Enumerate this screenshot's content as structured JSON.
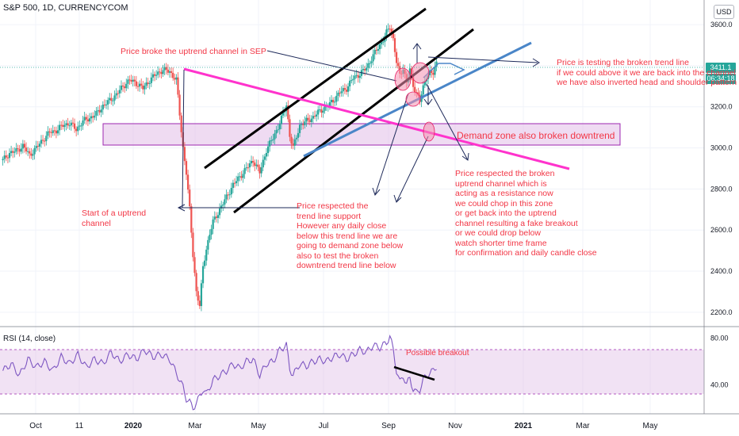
{
  "header": {
    "symbol_title": "S&P 500, 1D, CURRENCYCOM",
    "currency": "USD"
  },
  "price_tags": {
    "last_price": "3411.1",
    "countdown": "06:34:18"
  },
  "annotations": {
    "sep_break": "Price broke the uptrend channel in SEP",
    "testing": "Price is testing the broken trend line\nif we could above it we are back into the channel\nwe have also inverted head and shoulder pattern",
    "demand_zone": "Demand zone also broken downtrend",
    "start_channel": "Start of a uptrend\nchannel",
    "trendline_support": "Price respected the\ntrend line support\nHowever any daily close\nbelow this trend line we are\ngoing to demand zone below\nalso to test the broken\ndowntrend trend line below",
    "respected_channel": "Price respected the broken\nuptrend channel which is\nacting as a resistance now\nwe could chop in this zone\nor get back into the uptrend\nchannel resulting a fake breakout\nor we could drop below\nwatch shorter time frame\nfor confirmation and daily candle close",
    "possible_breakout": "Possible breakout"
  },
  "rsi": {
    "title": "RSI (14, close)",
    "upper_band": 70,
    "lower_band": 30
  },
  "chart_data": [
    {
      "type": "candlestick",
      "title": "S&P 500, 1D, CURRENCYCOM",
      "x_tick_labels": [
        "Oct",
        "11",
        "2020",
        "Mar",
        "May",
        "Jul",
        "Sep",
        "Nov",
        "2021",
        "Mar",
        "May"
      ],
      "y_tick_labels": [
        "3600.0",
        "3400.0",
        "3200.0",
        "3000.0",
        "2800.0",
        "2600.0",
        "2400.0",
        "2200.0"
      ],
      "ylim": [
        2130,
        3720
      ],
      "demand_zone": [
        3000,
        3115
      ],
      "series": [
        {
          "values": [
            [
              0,
              2940
            ],
            [
              4,
              2975
            ],
            [
              8,
              2985
            ],
            [
              12,
              3010
            ],
            [
              16,
              2965
            ],
            [
              20,
              3000
            ],
            [
              24,
              3040
            ],
            [
              28,
              3075
            ],
            [
              32,
              3085
            ],
            [
              36,
              3110
            ],
            [
              40,
              3120
            ],
            [
              44,
              3090
            ],
            [
              48,
              3130
            ],
            [
              52,
              3145
            ],
            [
              56,
              3165
            ],
            [
              60,
              3205
            ],
            [
              64,
              3230
            ],
            [
              68,
              3260
            ],
            [
              72,
              3300
            ],
            [
              76,
              3330
            ],
            [
              80,
              3315
            ],
            [
              84,
              3290
            ],
            [
              88,
              3330
            ],
            [
              92,
              3360
            ],
            [
              96,
              3380
            ],
            [
              100,
              3372
            ],
            [
              104,
              3330
            ],
            [
              108,
              3000
            ],
            [
              110,
              2880
            ],
            [
              112,
              2700
            ],
            [
              114,
              2480
            ],
            [
              116,
              2300
            ],
            [
              118,
              2230
            ],
            [
              120,
              2420
            ],
            [
              122,
              2510
            ],
            [
              124,
              2580
            ],
            [
              126,
              2640
            ],
            [
              130,
              2700
            ],
            [
              134,
              2760
            ],
            [
              138,
              2820
            ],
            [
              142,
              2860
            ],
            [
              146,
              2900
            ],
            [
              150,
              2940
            ],
            [
              154,
              2880
            ],
            [
              158,
              2990
            ],
            [
              162,
              3050
            ],
            [
              166,
              3120
            ],
            [
              170,
              3210
            ],
            [
              172,
              3060
            ],
            [
              174,
              3000
            ],
            [
              178,
              3110
            ],
            [
              182,
              3130
            ],
            [
              186,
              3150
            ],
            [
              190,
              3180
            ],
            [
              194,
              3200
            ],
            [
              198,
              3230
            ],
            [
              202,
              3270
            ],
            [
              206,
              3290
            ],
            [
              210,
              3340
            ],
            [
              214,
              3360
            ],
            [
              218,
              3390
            ],
            [
              222,
              3450
            ],
            [
              226,
              3500
            ],
            [
              230,
              3560
            ],
            [
              232,
              3590
            ],
            [
              234,
              3530
            ],
            [
              236,
              3420
            ],
            [
              238,
              3350
            ],
            [
              240,
              3390
            ],
            [
              242,
              3320
            ],
            [
              244,
              3380
            ],
            [
              246,
              3300
            ],
            [
              248,
              3270
            ],
            [
              250,
              3230
            ],
            [
              252,
              3290
            ],
            [
              254,
              3350
            ],
            [
              256,
              3370
            ],
            [
              258,
              3360
            ],
            [
              260,
              3411
            ]
          ]
        }
      ]
    },
    {
      "type": "line",
      "title": "RSI (14, close)",
      "y_tick_labels": [
        "80.00",
        "40.00"
      ],
      "ylim": [
        15,
        90
      ],
      "series": [
        {
          "values": [
            [
              0,
              52
            ],
            [
              5,
              58
            ],
            [
              10,
              48
            ],
            [
              15,
              62
            ],
            [
              20,
              55
            ],
            [
              25,
              60
            ],
            [
              30,
              52
            ],
            [
              35,
              64
            ],
            [
              40,
              58
            ],
            [
              45,
              66
            ],
            [
              50,
              55
            ],
            [
              55,
              62
            ],
            [
              60,
              58
            ],
            [
              65,
              68
            ],
            [
              70,
              60
            ],
            [
              75,
              66
            ],
            [
              80,
              62
            ],
            [
              85,
              70
            ],
            [
              90,
              64
            ],
            [
              95,
              66
            ],
            [
              100,
              62
            ],
            [
              104,
              50
            ],
            [
              108,
              38
            ],
            [
              110,
              28
            ],
            [
              112,
              25
            ],
            [
              114,
              20
            ],
            [
              116,
              24
            ],
            [
              118,
              30
            ],
            [
              120,
              36
            ],
            [
              122,
              32
            ],
            [
              126,
              44
            ],
            [
              130,
              48
            ],
            [
              134,
              52
            ],
            [
              138,
              58
            ],
            [
              142,
              54
            ],
            [
              146,
              60
            ],
            [
              150,
              62
            ],
            [
              154,
              48
            ],
            [
              158,
              58
            ],
            [
              162,
              60
            ],
            [
              166,
              70
            ],
            [
              170,
              74
            ],
            [
              172,
              54
            ],
            [
              174,
              48
            ],
            [
              178,
              58
            ],
            [
              182,
              56
            ],
            [
              186,
              60
            ],
            [
              190,
              62
            ],
            [
              194,
              60
            ],
            [
              198,
              64
            ],
            [
              202,
              66
            ],
            [
              206,
              62
            ],
            [
              210,
              66
            ],
            [
              214,
              70
            ],
            [
              218,
              68
            ],
            [
              222,
              74
            ],
            [
              226,
              72
            ],
            [
              230,
              76
            ],
            [
              232,
              82
            ],
            [
              234,
              70
            ],
            [
              236,
              52
            ],
            [
              238,
              42
            ],
            [
              240,
              48
            ],
            [
              242,
              40
            ],
            [
              244,
              46
            ],
            [
              246,
              36
            ],
            [
              248,
              33
            ],
            [
              250,
              36
            ],
            [
              252,
              44
            ],
            [
              254,
              48
            ],
            [
              256,
              50
            ],
            [
              258,
              52
            ],
            [
              260,
              56
            ]
          ]
        }
      ]
    }
  ]
}
